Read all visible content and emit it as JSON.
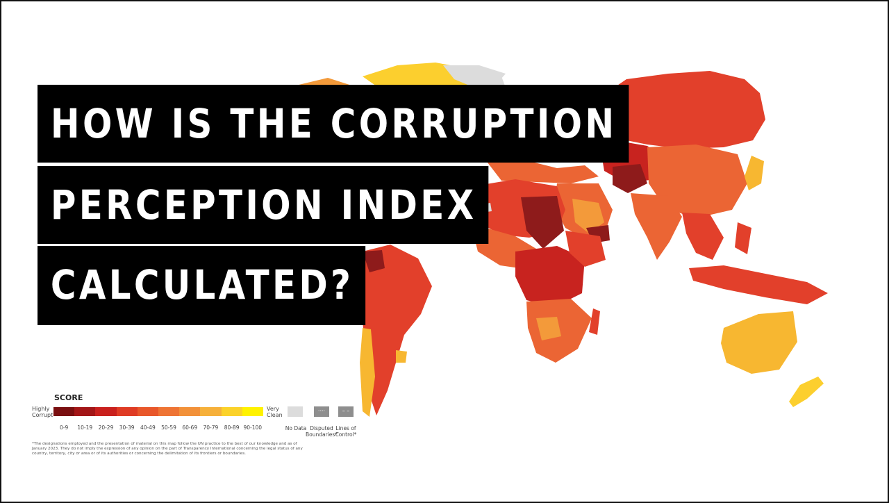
{
  "title": {
    "line1": "HOW IS THE CORRUPTION",
    "line2": "PERCEPTION INDEX",
    "line3": "CALCULATED?"
  },
  "legend": {
    "heading": "SCORE",
    "low_label": "Highly Corrupt",
    "high_label": "Very Clean",
    "ranges": [
      "0-9",
      "10-19",
      "20-29",
      "30-39",
      "40-49",
      "50-59",
      "60-69",
      "70-79",
      "80-89",
      "90-100"
    ],
    "colors": [
      "#7a0f10",
      "#a31617",
      "#c9201d",
      "#df3b24",
      "#e8572a",
      "#ee7434",
      "#f29139",
      "#f6b03a",
      "#fbd22a",
      "#fff200"
    ],
    "no_data": "No Data",
    "disputed": "Disputed Boundaries*",
    "lines_of_control": "Lines of Control*",
    "footnote": "*The designations employed and the presentation of material on this map follow the UN practice to the best of our knowledge and as of January 2023. They do not imply the expression of any opinion on the part of Transparency International concerning the legal status of any country, territory, city or area or of its authorities or concerning the delimitation of its frontiers or boundaries."
  },
  "map_colors": {
    "no_data": "#dcdcdc",
    "very_low": "#8e1b1b",
    "low": "#c8231f",
    "mid_low": "#e2402b",
    "mid": "#eb6534",
    "mid_high": "#f39a3a",
    "high": "#f7b731",
    "very_high": "#fccf2e"
  }
}
